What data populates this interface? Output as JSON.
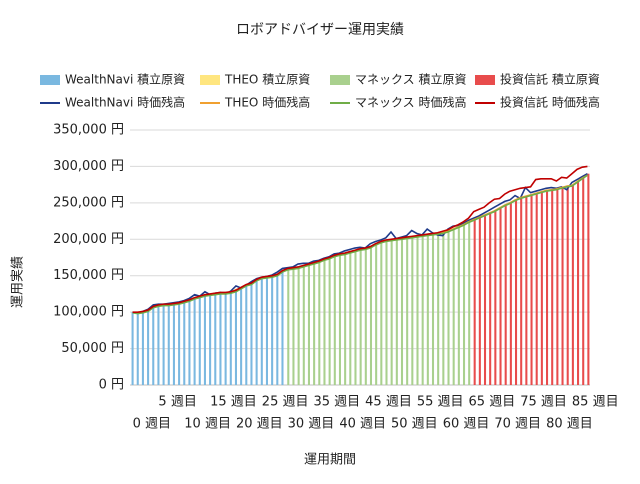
{
  "chart_data": {
    "type": "bar-line",
    "title": "ロボアドバイザー運用実績",
    "y_label": "運用実績",
    "x_label": "運用期間",
    "categories": [
      "0 週目",
      null,
      null,
      null,
      null,
      "5 週目",
      null,
      null,
      null,
      null,
      "10 週目",
      null,
      null,
      null,
      null,
      "15 週目",
      null,
      null,
      null,
      null,
      "20 週目",
      null,
      null,
      null,
      null,
      "25 週目",
      null,
      null,
      null,
      null,
      "30 週目",
      null,
      null,
      null,
      null,
      "35 週目",
      null,
      null,
      null,
      null,
      "40 週目",
      null,
      null,
      null,
      null,
      "45 週目",
      null,
      null,
      null,
      null,
      "50 週目",
      null,
      null,
      null,
      null,
      "55 週目",
      null,
      null,
      null,
      null,
      "60 週目",
      null,
      null,
      null,
      null,
      "65 週目",
      null,
      null,
      null,
      null,
      "70 週目",
      null,
      null,
      null,
      null,
      "75 週目",
      null,
      null,
      null,
      null,
      "80 週目",
      null,
      null,
      null,
      null,
      "85 週目",
      null,
      null,
      null
    ],
    "ylim": [
      0,
      350000
    ],
    "yticks": [
      {
        "value": 0,
        "label": "0 円"
      },
      {
        "value": 50000,
        "label": "50,000 円"
      },
      {
        "value": 100000,
        "label": "100,000 円"
      },
      {
        "value": 150000,
        "label": "150,000 円"
      },
      {
        "value": 200000,
        "label": "200,000 円"
      },
      {
        "value": 250000,
        "label": "250,000 円"
      },
      {
        "value": 300000,
        "label": "300,000 円"
      },
      {
        "value": 350000,
        "label": "350,000 円"
      }
    ],
    "grid": true,
    "series": [
      {
        "name": "WealthNavi 積立原資",
        "type": "bar",
        "color": "#7ab8e0",
        "values": [
          100000,
          100000,
          101000,
          103000,
          108000,
          110000,
          111000,
          111000,
          112000,
          113000,
          115000,
          117000,
          120000,
          122000,
          124000,
          125000,
          126000,
          127000,
          127000,
          128000,
          130000,
          134000,
          138000,
          140000,
          145000,
          148000,
          149000,
          150000,
          152000,
          157000,
          null,
          null,
          null,
          null,
          null,
          null,
          null,
          null,
          null,
          null,
          null,
          null,
          null,
          null,
          null,
          null,
          null,
          null,
          null,
          null,
          null,
          null,
          null,
          null,
          null,
          null,
          null,
          null,
          null,
          null,
          null,
          null,
          null,
          null,
          null,
          null,
          null,
          null,
          null,
          null,
          null,
          null,
          null,
          null,
          null,
          null,
          null,
          null,
          null,
          null,
          null,
          null,
          null,
          null,
          null,
          null,
          null,
          null,
          null
        ]
      },
      {
        "name": "THEO 積立原資",
        "type": "bar",
        "color": "#ffe680",
        "values": [
          null,
          null,
          null,
          null,
          null,
          null,
          null,
          null,
          null,
          null,
          null,
          null,
          null,
          null,
          null,
          null,
          null,
          null,
          null,
          null,
          null,
          null,
          null,
          null,
          null,
          null,
          null,
          null,
          null,
          null,
          null,
          null,
          null,
          null,
          null,
          null,
          null,
          null,
          null,
          null,
          null,
          null,
          null,
          null,
          null,
          null,
          null,
          null,
          null,
          null,
          null,
          null,
          null,
          null,
          null,
          null,
          null,
          null,
          null,
          null,
          null,
          null,
          null,
          null,
          null,
          null,
          null,
          null,
          null,
          null,
          null,
          null,
          null,
          null,
          null,
          null,
          null,
          null,
          null,
          null,
          null,
          null,
          null,
          null,
          null,
          null,
          null,
          null,
          null
        ]
      },
      {
        "name": "マネックス 積立原資",
        "type": "bar",
        "color": "#a9d08e",
        "values": [
          null,
          null,
          null,
          null,
          null,
          null,
          null,
          null,
          null,
          null,
          null,
          null,
          null,
          null,
          null,
          null,
          null,
          null,
          null,
          null,
          null,
          null,
          null,
          null,
          null,
          null,
          null,
          null,
          null,
          null,
          160000,
          161000,
          162000,
          164000,
          166000,
          168000,
          170000,
          173000,
          175000,
          178000,
          180000,
          181000,
          183000,
          185000,
          187000,
          188000,
          190000,
          194000,
          197000,
          199000,
          200000,
          201000,
          202000,
          203000,
          204000,
          205000,
          206000,
          207000,
          208000,
          209000,
          210000,
          212000,
          215000,
          218000,
          221000,
          225000,
          null,
          null,
          null,
          null,
          null,
          null,
          null,
          null,
          null,
          null,
          null,
          null,
          null,
          null,
          null,
          null,
          null,
          null,
          null,
          null,
          null,
          null,
          null
        ]
      },
      {
        "name": "投資信託 積立原資",
        "type": "bar",
        "color": "#e84c4c",
        "values": [
          null,
          null,
          null,
          null,
          null,
          null,
          null,
          null,
          null,
          null,
          null,
          null,
          null,
          null,
          null,
          null,
          null,
          null,
          null,
          null,
          null,
          null,
          null,
          null,
          null,
          null,
          null,
          null,
          null,
          null,
          null,
          null,
          null,
          null,
          null,
          null,
          null,
          null,
          null,
          null,
          null,
          null,
          null,
          null,
          null,
          null,
          null,
          null,
          null,
          null,
          null,
          null,
          null,
          null,
          null,
          null,
          null,
          null,
          null,
          null,
          null,
          null,
          null,
          null,
          null,
          null,
          228000,
          231000,
          234000,
          237000,
          240000,
          244000,
          248000,
          251000,
          255000,
          258000,
          260000,
          262000,
          264000,
          266000,
          268000,
          269000,
          270000,
          272000,
          274000,
          275000,
          280000,
          285000,
          290000
        ]
      },
      {
        "name": "WealthNavi 時価残高",
        "type": "line",
        "color": "#1f3a8a",
        "values": [
          100000,
          99000,
          101000,
          104000,
          110000,
          111000,
          111000,
          112000,
          113000,
          114000,
          116000,
          119000,
          124000,
          122000,
          128000,
          124000,
          126000,
          127000,
          125000,
          129000,
          136000,
          133000,
          137000,
          142000,
          146000,
          148000,
          149000,
          151000,
          155000,
          160000,
          161000,
          162000,
          166000,
          167000,
          167000,
          170000,
          171000,
          174000,
          176000,
          180000,
          181000,
          184000,
          186000,
          188000,
          189000,
          188000,
          194000,
          197000,
          199000,
          202000,
          210000,
          201000,
          203000,
          205000,
          212000,
          208000,
          206000,
          214000,
          209000,
          206000,
          205000,
          214000,
          218000,
          219000,
          222000,
          226000,
          229000,
          232000,
          236000,
          240000,
          244000,
          248000,
          252000,
          254000,
          260000,
          256000,
          271000,
          264000,
          266000,
          268000,
          270000,
          271000,
          270000,
          272000,
          268000,
          278000,
          282000,
          286000,
          290000
        ]
      },
      {
        "name": "THEO 時価残高",
        "type": "line",
        "color": "#f0a030",
        "values": [
          100000,
          99000,
          100000,
          102000,
          107000,
          109000,
          110000,
          110000,
          111000,
          112000,
          114000,
          116000,
          119000,
          121000,
          123000,
          124000,
          125000,
          126000,
          126000,
          127000,
          131000,
          133000,
          137000,
          139000,
          144000,
          147000,
          148000,
          149000,
          151000,
          156000,
          159000,
          160000,
          161000,
          163000,
          165000,
          167000,
          169000,
          172000,
          174000,
          177000,
          179000,
          180000,
          182000,
          184000,
          186000,
          187000,
          189000,
          193000,
          196000,
          198000,
          199000,
          200000,
          201000,
          202000,
          203000,
          204000,
          205000,
          206000,
          207000,
          208000,
          209000,
          211000,
          214000,
          217000,
          220000,
          224000,
          227000,
          230000,
          233000,
          236000,
          239000,
          243000,
          247000,
          250000,
          254000,
          257000,
          259000,
          261000,
          263000,
          265000,
          267000,
          268000,
          269000,
          271000,
          273000,
          274000,
          279000,
          284000,
          288000
        ]
      },
      {
        "name": "マネックス 時価残高",
        "type": "line",
        "color": "#70ad47",
        "values": [
          99000,
          98000,
          99000,
          101000,
          106000,
          108000,
          109000,
          109000,
          110000,
          111000,
          113000,
          115000,
          118000,
          120000,
          122000,
          123000,
          124000,
          125000,
          125000,
          126000,
          128000,
          132000,
          136000,
          138000,
          143000,
          146000,
          147000,
          148000,
          150000,
          155000,
          158000,
          159000,
          160000,
          162000,
          164000,
          166000,
          168000,
          171000,
          173000,
          176000,
          178000,
          179000,
          181000,
          183000,
          185000,
          186000,
          188000,
          192000,
          195000,
          197000,
          198000,
          199000,
          200000,
          201000,
          202000,
          203000,
          204000,
          205000,
          206000,
          207000,
          208000,
          210000,
          213000,
          216000,
          219000,
          223000,
          226000,
          229000,
          232000,
          235000,
          238000,
          242000,
          246000,
          249000,
          253000,
          256000,
          258000,
          260000,
          262000,
          264000,
          266000,
          267000,
          268000,
          270000,
          272000,
          273000,
          278000,
          283000,
          288000
        ]
      },
      {
        "name": "投資信託 時価残高",
        "type": "line",
        "color": "#c00000",
        "values": [
          100000,
          100000,
          101000,
          103000,
          108000,
          110000,
          111000,
          111000,
          112000,
          113000,
          115000,
          117000,
          120000,
          122000,
          124000,
          125000,
          126000,
          127000,
          127000,
          128000,
          130000,
          134000,
          138000,
          140000,
          145000,
          148000,
          149000,
          150000,
          152000,
          157000,
          160000,
          161000,
          162000,
          164000,
          166000,
          168000,
          170000,
          173000,
          175000,
          178000,
          180000,
          181000,
          183000,
          185000,
          187000,
          188000,
          190000,
          194000,
          197000,
          199000,
          200000,
          201000,
          202000,
          203000,
          204000,
          205000,
          206000,
          207000,
          208000,
          209000,
          211000,
          213000,
          217000,
          220000,
          224000,
          229000,
          238000,
          241000,
          244000,
          250000,
          255000,
          256000,
          262000,
          266000,
          268000,
          270000,
          271000,
          272000,
          282000,
          283000,
          283000,
          283000,
          280000,
          285000,
          284000,
          290000,
          296000,
          299000,
          300000
        ]
      }
    ]
  }
}
